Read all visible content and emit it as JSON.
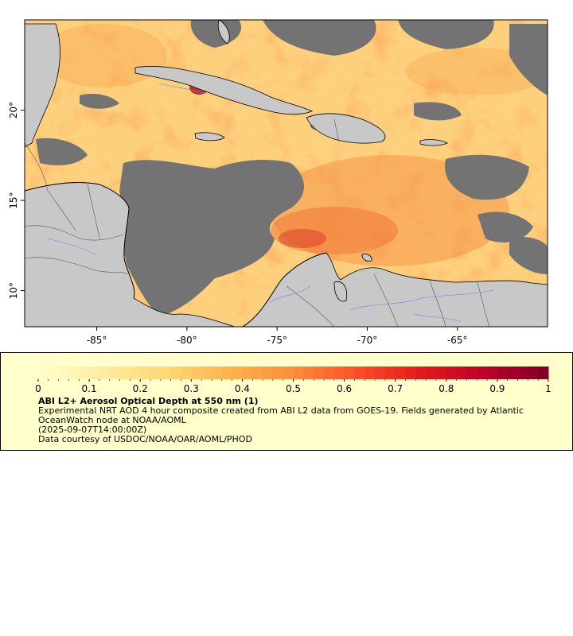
{
  "map": {
    "lon_range": [
      -89,
      -60
    ],
    "lat_range": [
      8,
      25
    ],
    "x_ticks": [
      {
        "value": -85,
        "label": "-85°"
      },
      {
        "value": -80,
        "label": "-80°"
      },
      {
        "value": -75,
        "label": "-75°"
      },
      {
        "value": -70,
        "label": "-70°"
      },
      {
        "value": -65,
        "label": "-65°"
      }
    ],
    "y_ticks": [
      {
        "value": 20,
        "label": "20°"
      },
      {
        "value": 15,
        "label": "15°"
      },
      {
        "value": 10,
        "label": "10°"
      }
    ],
    "colors": {
      "land": "#c8c8c8",
      "nodata": "#737373",
      "rivers": "#5b8fd6",
      "borders": "#555555",
      "coast": "#000000"
    }
  },
  "legend": {
    "ticks": [
      "0",
      "0.1",
      "0.2",
      "0.3",
      "0.4",
      "0.5",
      "0.6",
      "0.7",
      "0.8",
      "0.9",
      "1"
    ],
    "scale_min": 0,
    "scale_max": 1,
    "colormap": [
      "#ffffcc",
      "#ffeda0",
      "#fed976",
      "#feb24c",
      "#fd8d3c",
      "#fc4e2a",
      "#e31a1c",
      "#bd0026",
      "#800026"
    ],
    "title": "ABI L2+ Aerosol Optical Depth at 550 nm (1)",
    "description": "Experimental NRT AOD 4 hour composite created from ABI L2 data from GOES-19. Fields generated by Atlantic OceanWatch node at NOAA/AOML",
    "timestamp": "(2025-09-07T14:00:00Z)",
    "credit": "Data courtesy of USDOC/NOAA/OAR/AOML/PHOD"
  }
}
